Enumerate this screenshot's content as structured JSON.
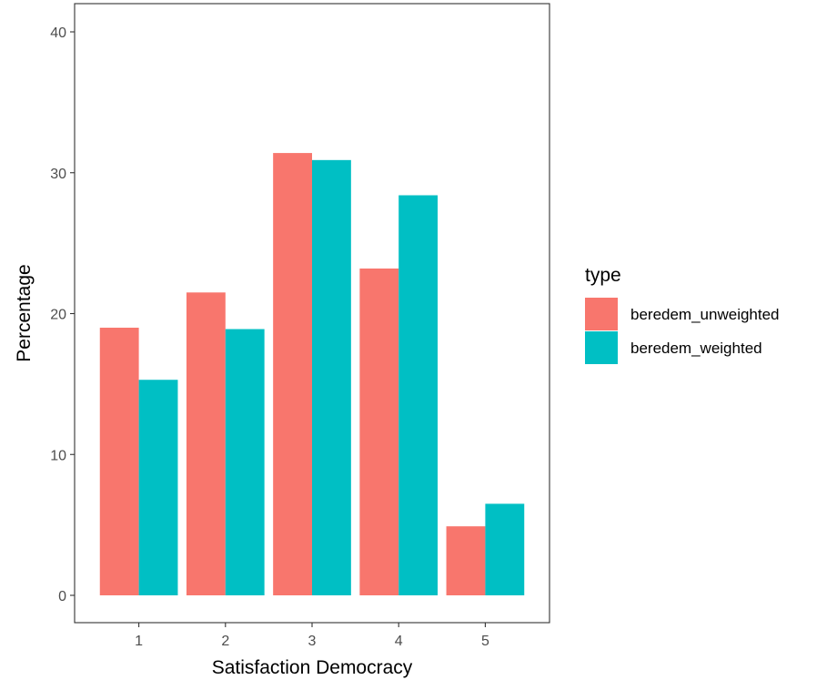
{
  "chart_data": {
    "type": "bar",
    "xlabel": "Satisfaction Democracy",
    "ylabel": "Percentage",
    "categories": [
      "1",
      "2",
      "3",
      "4",
      "5"
    ],
    "ylim": [
      0,
      42
    ],
    "yticks": [
      0,
      10,
      20,
      30,
      40
    ],
    "series": [
      {
        "name": "beredem_unweighted",
        "color": "#F8766D",
        "values": [
          19.0,
          21.5,
          31.4,
          23.2,
          4.9
        ]
      },
      {
        "name": "beredem_weighted",
        "color": "#00BFC4",
        "values": [
          15.3,
          18.9,
          30.9,
          28.4,
          6.5
        ]
      }
    ],
    "legend": {
      "title": "type",
      "position": "right"
    },
    "grid": false
  }
}
